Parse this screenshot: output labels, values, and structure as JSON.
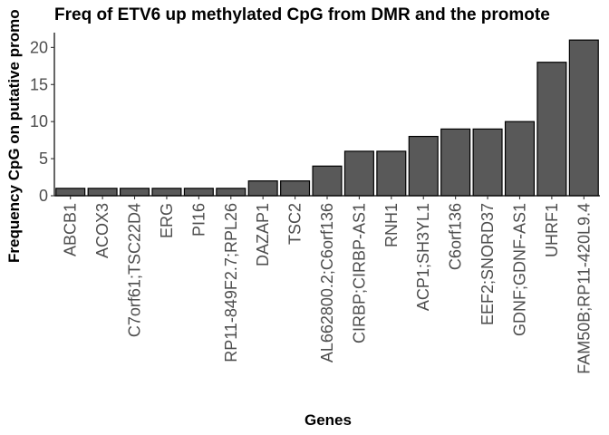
{
  "chart_data": {
    "type": "bar",
    "title": "Freq of ETV6 up methylated CpG from DMR and the promote",
    "xlabel": "Genes",
    "ylabel": "Frequency CpG on putative promo",
    "categories": [
      "ABCB1",
      "ACOX3",
      "C7orf61;TSC22D4",
      "ERG",
      "PI16",
      "RP11-849F2.7;RPL26",
      "DAZAP1",
      "TSC2",
      "AL662800.2;C6orf136",
      "CIRBP;CIRBP-AS1",
      "RNH1",
      "ACP1;SH3YL1",
      "C6orf136",
      "EEF2;SNORD37",
      "GDNF;GDNF-AS1",
      "UHRF1",
      "FAM50B;RP11-420L9.4"
    ],
    "values": [
      1,
      1,
      1,
      1,
      1,
      1,
      2,
      2,
      4,
      6,
      6,
      8,
      9,
      9,
      10,
      18,
      21
    ],
    "ylim": [
      0,
      22
    ],
    "yticks": [
      0,
      5,
      10,
      15,
      20
    ],
    "grid": false,
    "bar_color": "#595959",
    "bar_outline": "#000000"
  }
}
